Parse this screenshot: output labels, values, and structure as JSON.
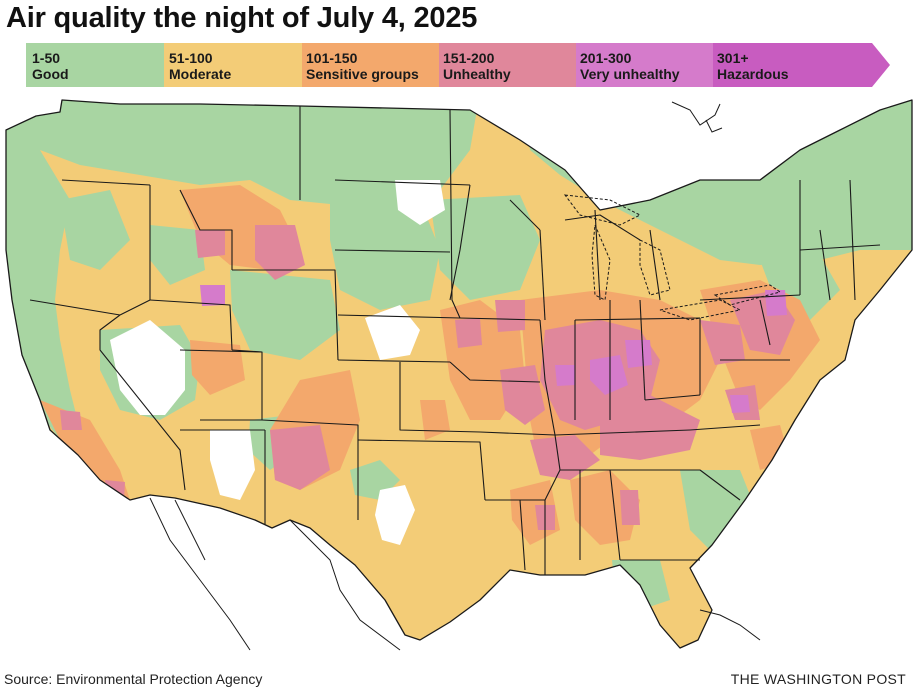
{
  "title": "Air quality the night of July 4, 2025",
  "legend": {
    "categories": [
      {
        "range": "1-50",
        "label": "Good",
        "color": "#a8d5a2"
      },
      {
        "range": "51-100",
        "label": "Moderate",
        "color": "#f3cc77"
      },
      {
        "range": "101-150",
        "label": "Sensitive groups",
        "color": "#f3a86c"
      },
      {
        "range": "151-200",
        "label": "Unhealthy",
        "color": "#e0879b"
      },
      {
        "range": "201-300",
        "label": "Very unhealthy",
        "color": "#d57bcb"
      },
      {
        "range": "301+",
        "label": "Hazardous",
        "color": "#c85cc0"
      }
    ]
  },
  "colors": {
    "good": "#a8d5a2",
    "moderate": "#f3cc77",
    "sensitive": "#f3a86c",
    "unhealthy": "#e0879b",
    "very_unhealthy": "#d57bcb",
    "hazardous": "#c85cc0",
    "no_data": "#ffffff",
    "borders": "#1a1a1a"
  },
  "source": "Source: Environmental Protection Agency",
  "credit": "THE WASHINGTON POST"
}
